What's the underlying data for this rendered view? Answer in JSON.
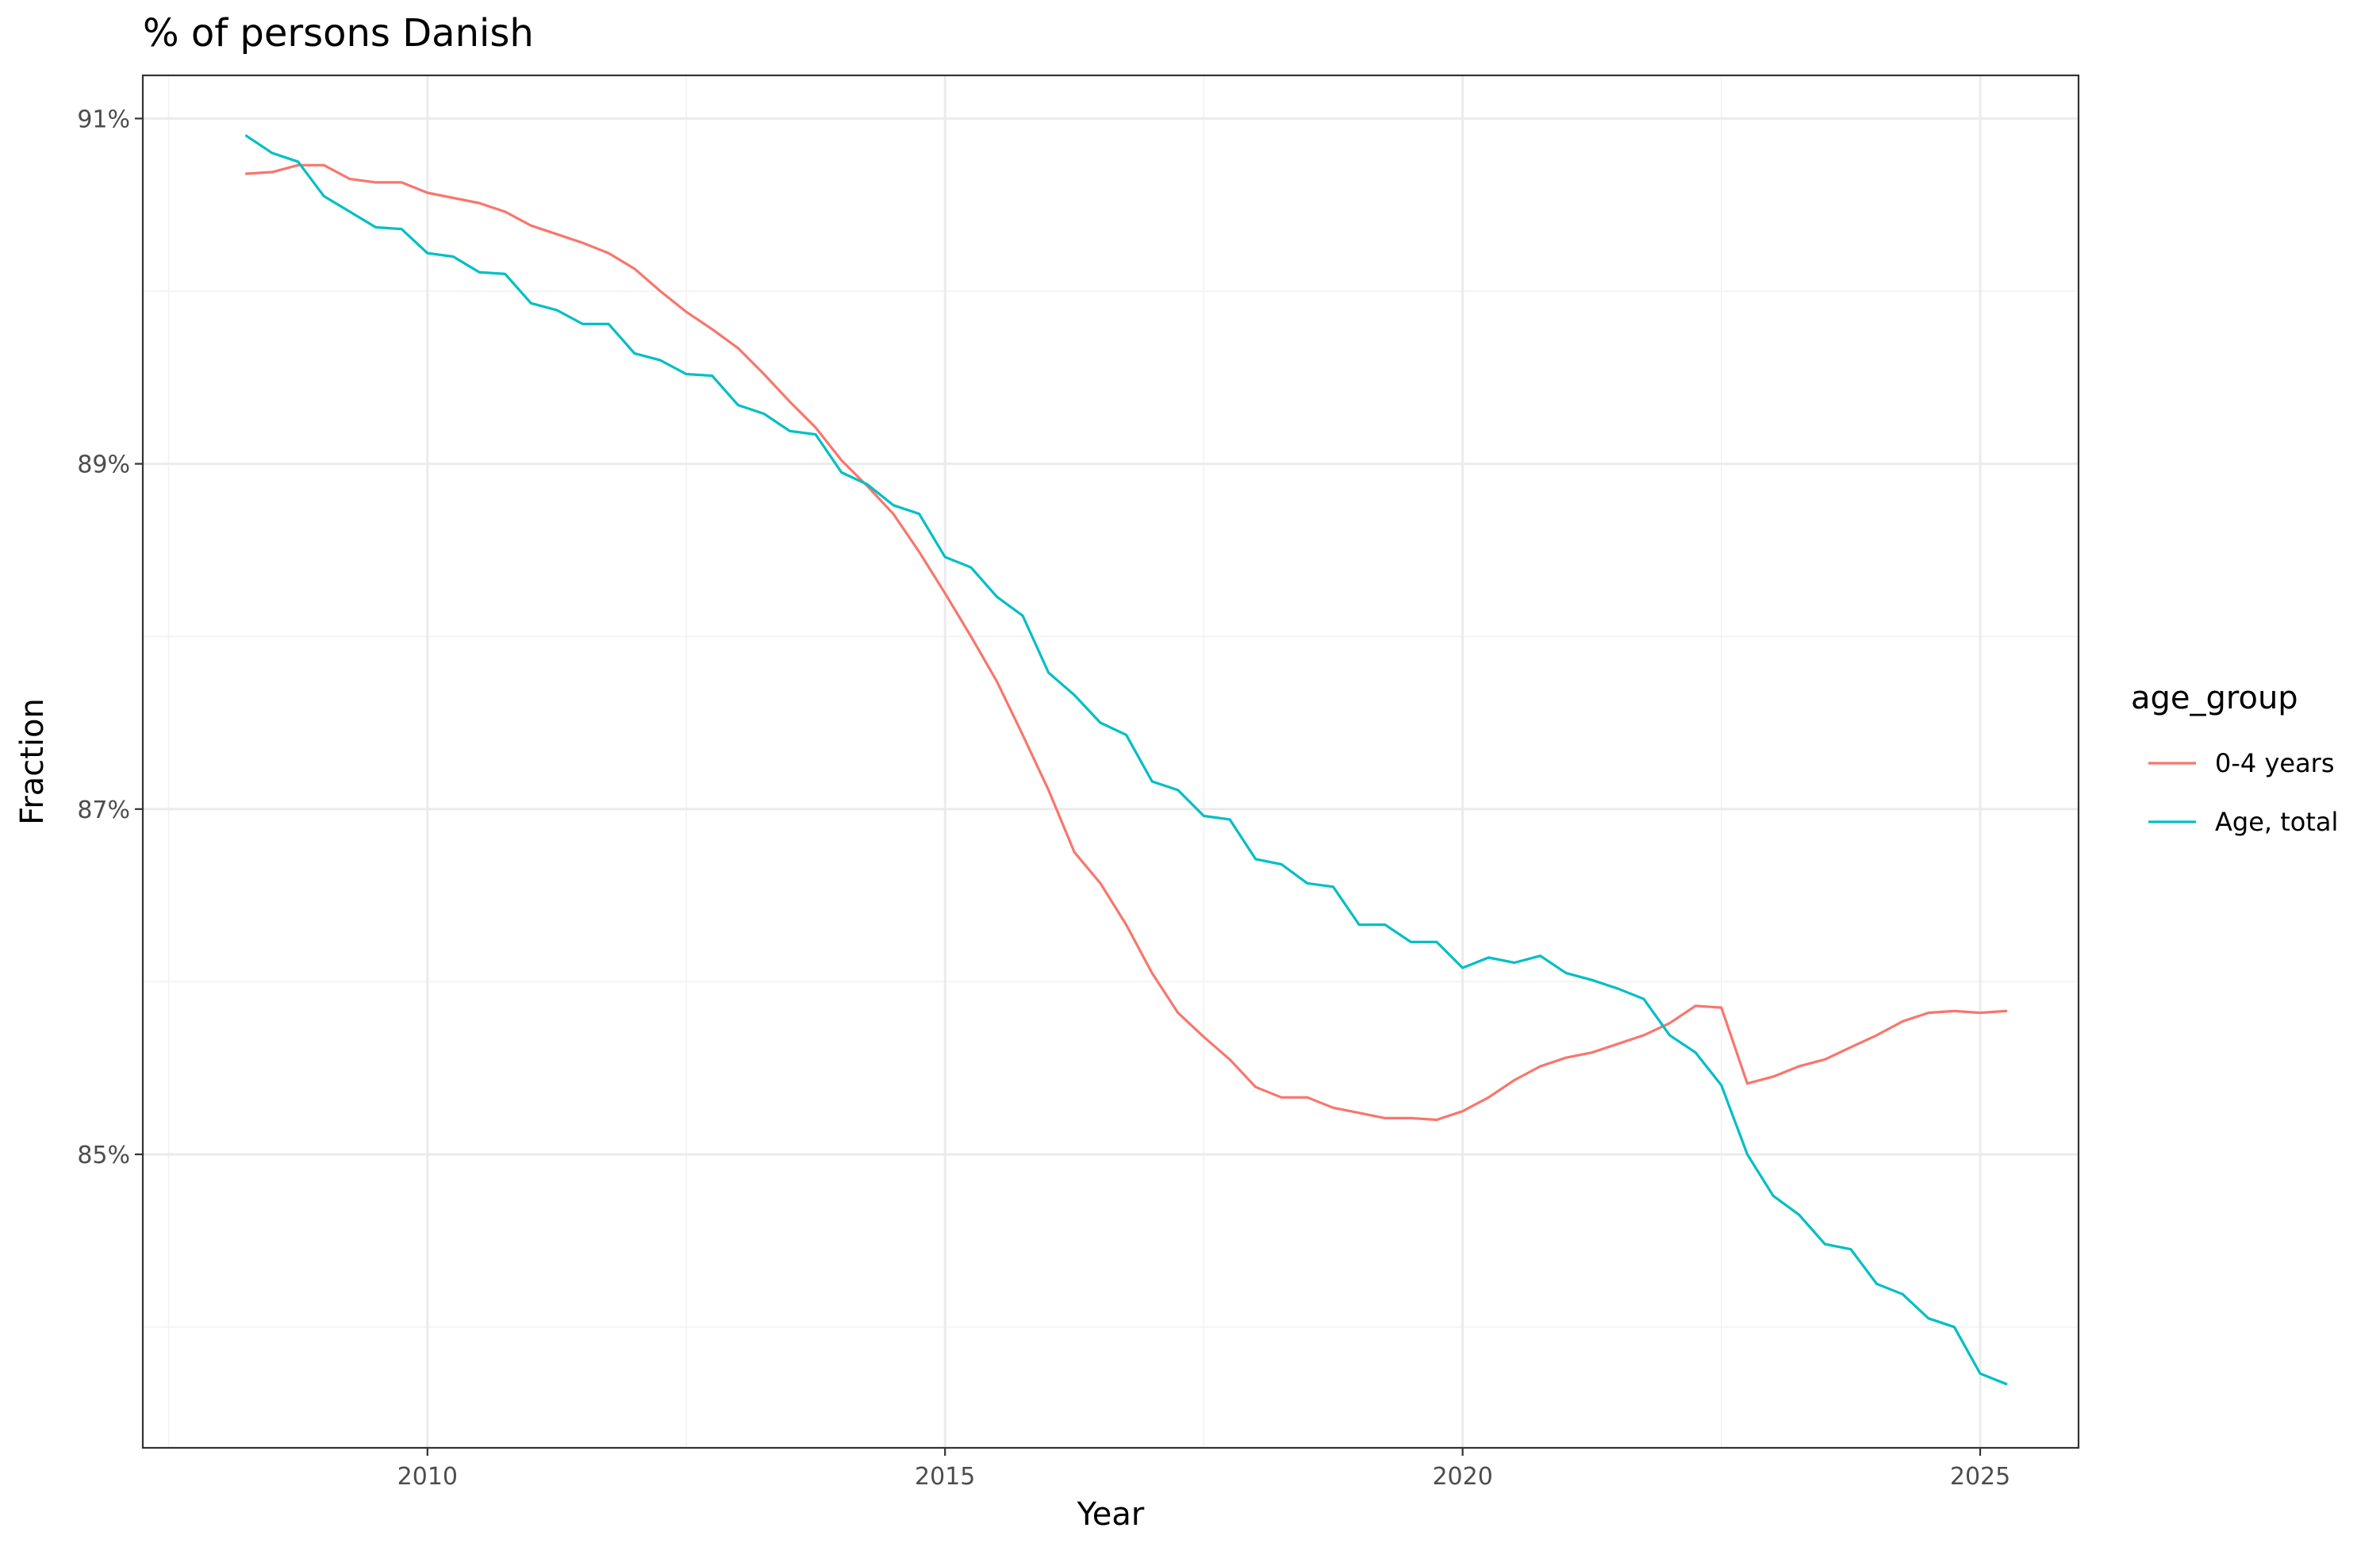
{
  "chart_data": {
    "type": "line",
    "title": "% of persons Danish",
    "xlabel": "Year",
    "ylabel": "Fraction",
    "xlim": [
      2007.25,
      2025.95
    ],
    "ylim": [
      83.3,
      91.25
    ],
    "x_ticks": [
      2010,
      2015,
      2020,
      2025
    ],
    "x_tick_labels": [
      "2010",
      "2015",
      "2020",
      "2025"
    ],
    "x_minor_ticks": [
      2007.5,
      2012.5,
      2017.5,
      2022.5
    ],
    "y_ticks": [
      85,
      87,
      89,
      91
    ],
    "y_tick_labels": [
      "85%",
      "87%",
      "89%",
      "91%"
    ],
    "y_minor_ticks": [
      84,
      86,
      88,
      90
    ],
    "grid": true,
    "legend": {
      "title": "age_group",
      "position": "right"
    },
    "colors": {
      "0-4 years": "#F8766D",
      "Age, total": "#00BFC4"
    },
    "series": [
      {
        "name": "0-4 years",
        "color": "#F8766D",
        "points": [
          [
            2008.25,
            90.68
          ],
          [
            2008.5,
            90.69
          ],
          [
            2008.75,
            90.73
          ],
          [
            2009.0,
            90.73
          ],
          [
            2009.25,
            90.65
          ],
          [
            2009.5,
            90.63
          ],
          [
            2009.75,
            90.63
          ],
          [
            2010.0,
            90.57
          ],
          [
            2010.25,
            90.54
          ],
          [
            2010.5,
            90.51
          ],
          [
            2010.75,
            90.46
          ],
          [
            2011.0,
            90.38
          ],
          [
            2011.25,
            90.33
          ],
          [
            2011.5,
            90.28
          ],
          [
            2011.75,
            90.22
          ],
          [
            2012.0,
            90.13
          ],
          [
            2012.25,
            90.0
          ],
          [
            2012.5,
            89.88
          ],
          [
            2012.75,
            89.78
          ],
          [
            2013.0,
            89.67
          ],
          [
            2013.25,
            89.52
          ],
          [
            2013.5,
            89.36
          ],
          [
            2013.75,
            89.21
          ],
          [
            2014.0,
            89.02
          ],
          [
            2014.25,
            88.87
          ],
          [
            2014.5,
            88.71
          ],
          [
            2014.75,
            88.49
          ],
          [
            2015.0,
            88.25
          ],
          [
            2015.25,
            88.0
          ],
          [
            2015.5,
            87.74
          ],
          [
            2015.75,
            87.43
          ],
          [
            2016.0,
            87.11
          ],
          [
            2016.25,
            86.75
          ],
          [
            2016.5,
            86.57
          ],
          [
            2016.75,
            86.33
          ],
          [
            2017.0,
            86.05
          ],
          [
            2017.25,
            85.82
          ],
          [
            2017.5,
            85.68
          ],
          [
            2017.75,
            85.55
          ],
          [
            2018.0,
            85.39
          ],
          [
            2018.25,
            85.33
          ],
          [
            2018.5,
            85.33
          ],
          [
            2018.75,
            85.27
          ],
          [
            2019.0,
            85.24
          ],
          [
            2019.25,
            85.21
          ],
          [
            2019.5,
            85.21
          ],
          [
            2019.75,
            85.2
          ],
          [
            2020.0,
            85.25
          ],
          [
            2020.25,
            85.33
          ],
          [
            2020.5,
            85.43
          ],
          [
            2020.75,
            85.51
          ],
          [
            2021.0,
            85.56
          ],
          [
            2021.25,
            85.59
          ],
          [
            2021.5,
            85.64
          ],
          [
            2021.75,
            85.69
          ],
          [
            2022.0,
            85.76
          ],
          [
            2022.25,
            85.86
          ],
          [
            2022.5,
            85.85
          ],
          [
            2022.75,
            85.41
          ],
          [
            2023.0,
            85.45
          ],
          [
            2023.25,
            85.51
          ],
          [
            2023.5,
            85.55
          ],
          [
            2023.75,
            85.62
          ],
          [
            2024.0,
            85.69
          ],
          [
            2024.25,
            85.77
          ],
          [
            2024.5,
            85.82
          ],
          [
            2024.75,
            85.83
          ],
          [
            2025.0,
            85.82
          ],
          [
            2025.25,
            85.83
          ]
        ]
      },
      {
        "name": "Age, total",
        "color": "#00BFC4",
        "points": [
          [
            2008.25,
            90.9
          ],
          [
            2008.5,
            90.8
          ],
          [
            2008.75,
            90.75
          ],
          [
            2009.0,
            90.55
          ],
          [
            2009.25,
            90.46
          ],
          [
            2009.5,
            90.37
          ],
          [
            2009.75,
            90.36
          ],
          [
            2010.0,
            90.22
          ],
          [
            2010.25,
            90.2
          ],
          [
            2010.5,
            90.11
          ],
          [
            2010.75,
            90.1
          ],
          [
            2011.0,
            89.93
          ],
          [
            2011.25,
            89.89
          ],
          [
            2011.5,
            89.81
          ],
          [
            2011.75,
            89.81
          ],
          [
            2012.0,
            89.64
          ],
          [
            2012.25,
            89.6
          ],
          [
            2012.5,
            89.52
          ],
          [
            2012.75,
            89.51
          ],
          [
            2013.0,
            89.34
          ],
          [
            2013.25,
            89.29
          ],
          [
            2013.5,
            89.19
          ],
          [
            2013.75,
            89.17
          ],
          [
            2014.0,
            88.95
          ],
          [
            2014.25,
            88.88
          ],
          [
            2014.5,
            88.76
          ],
          [
            2014.75,
            88.71
          ],
          [
            2015.0,
            88.46
          ],
          [
            2015.25,
            88.4
          ],
          [
            2015.5,
            88.23
          ],
          [
            2015.75,
            88.12
          ],
          [
            2016.0,
            87.79
          ],
          [
            2016.25,
            87.66
          ],
          [
            2016.5,
            87.5
          ],
          [
            2016.75,
            87.43
          ],
          [
            2017.0,
            87.16
          ],
          [
            2017.25,
            87.11
          ],
          [
            2017.5,
            86.96
          ],
          [
            2017.75,
            86.94
          ],
          [
            2018.0,
            86.71
          ],
          [
            2018.25,
            86.68
          ],
          [
            2018.5,
            86.57
          ],
          [
            2018.75,
            86.55
          ],
          [
            2019.0,
            86.33
          ],
          [
            2019.25,
            86.33
          ],
          [
            2019.5,
            86.23
          ],
          [
            2019.75,
            86.23
          ],
          [
            2020.0,
            86.08
          ],
          [
            2020.25,
            86.14
          ],
          [
            2020.5,
            86.11
          ],
          [
            2020.75,
            86.15
          ],
          [
            2021.0,
            86.05
          ],
          [
            2021.25,
            86.01
          ],
          [
            2021.5,
            85.96
          ],
          [
            2021.75,
            85.9
          ],
          [
            2022.0,
            85.69
          ],
          [
            2022.25,
            85.59
          ],
          [
            2022.5,
            85.4
          ],
          [
            2022.75,
            85.0
          ],
          [
            2023.0,
            84.76
          ],
          [
            2023.25,
            84.65
          ],
          [
            2023.5,
            84.48
          ],
          [
            2023.75,
            84.45
          ],
          [
            2024.0,
            84.25
          ],
          [
            2024.25,
            84.19
          ],
          [
            2024.5,
            84.05
          ],
          [
            2024.75,
            84.0
          ],
          [
            2025.0,
            83.73
          ],
          [
            2025.25,
            83.67
          ]
        ]
      }
    ]
  }
}
